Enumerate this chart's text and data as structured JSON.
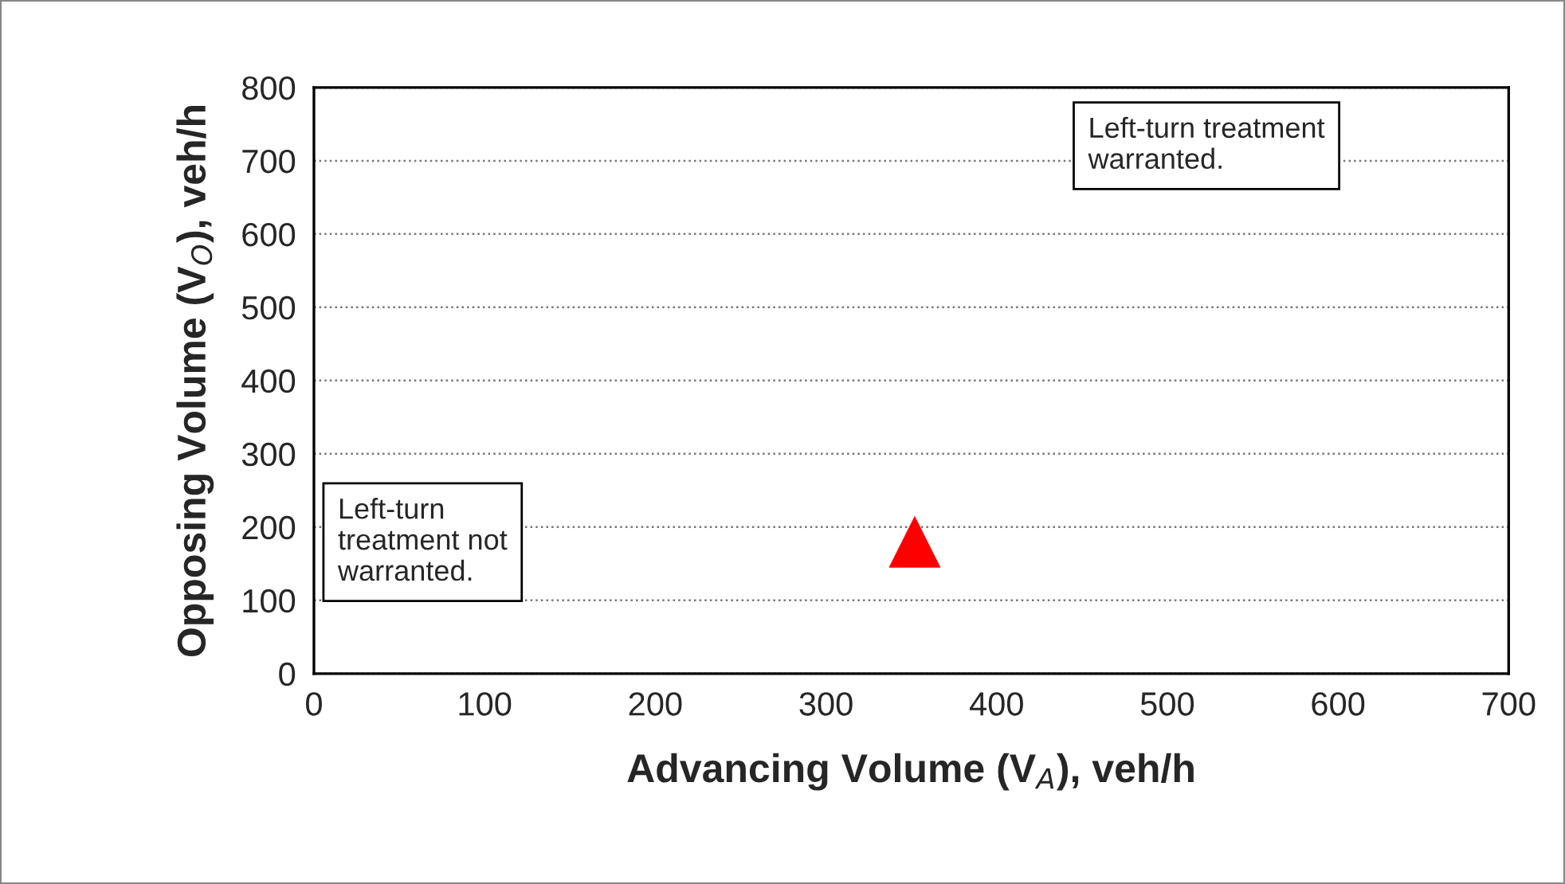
{
  "chart_data": {
    "type": "scatter",
    "xlabel": "Advancing Volume (V$_{A}$), veh/h",
    "ylabel": "Opposing Volume (V$_{O}$), veh/h",
    "series": [
      {
        "color": "#ff0000",
        "x": [
          352
        ],
        "values": [
          180
        ]
      }
    ],
    "marker": "triangle",
    "xlim": [
      0,
      700
    ],
    "xticks": [
      0,
      100,
      200,
      300,
      400,
      500,
      600,
      700
    ],
    "ylim": [
      0,
      800
    ],
    "yticks": [
      0,
      100,
      200,
      300,
      400,
      500,
      600,
      700,
      800
    ],
    "grid": "y",
    "annotations": [
      "Left-turn treatment\nwarranted.",
      "Left-turn\ntreatment not\nwarranted."
    ]
  }
}
